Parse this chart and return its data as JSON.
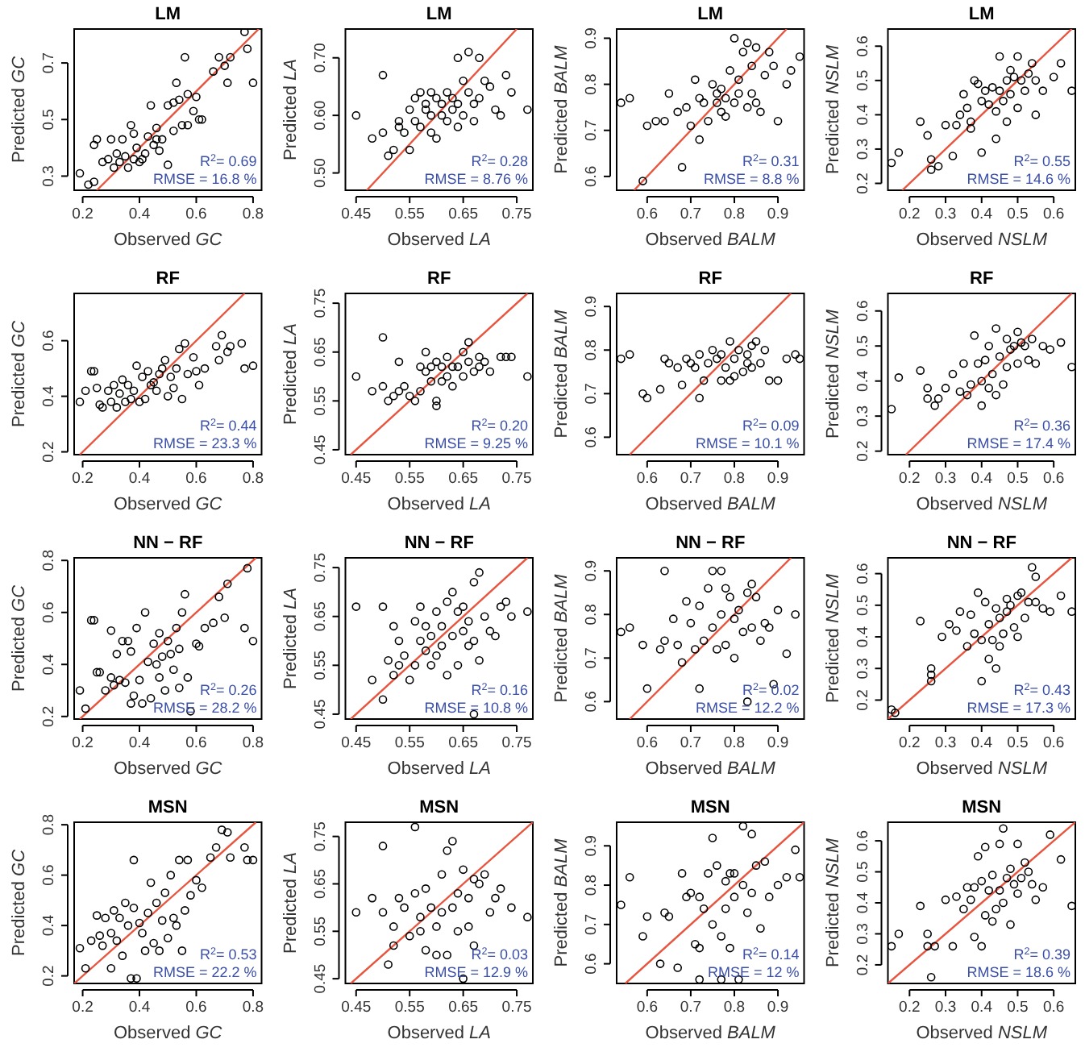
{
  "chart_data": [
    {
      "type": "scatter",
      "title": "LM",
      "xlabel": "Observed GC",
      "ylabel": "Predicted GC",
      "xlim": [
        0.17,
        0.83
      ],
      "ylim": [
        0.25,
        0.82
      ],
      "xticks": [
        0.2,
        0.4,
        0.6,
        0.8
      ],
      "yticks": [
        0.3,
        0.5,
        0.7
      ],
      "marker": "circle",
      "annotations": [
        "R$^{2}$= 0.69",
        "RMSE = 16.8 %"
      ],
      "series": [
        {
          "type": "scatter",
          "color": "#000000",
          "x": [
            0.19,
            0.22,
            0.24,
            0.24,
            0.25,
            0.27,
            0.29,
            0.3,
            0.31,
            0.32,
            0.33,
            0.34,
            0.35,
            0.36,
            0.37,
            0.38,
            0.39,
            0.4,
            0.42,
            0.43,
            0.44,
            0.45,
            0.46,
            0.47,
            0.48,
            0.5,
            0.5,
            0.52,
            0.53,
            0.54,
            0.55,
            0.56,
            0.57,
            0.59,
            0.6,
            0.61,
            0.62,
            0.66,
            0.68,
            0.7,
            0.71,
            0.72,
            0.77,
            0.78,
            0.8,
            0.41,
            0.38,
            0.46,
            0.52,
            0.57
          ],
          "values": [
            0.31,
            0.27,
            0.28,
            0.41,
            0.43,
            0.35,
            0.36,
            0.43,
            0.33,
            0.38,
            0.35,
            0.43,
            0.37,
            0.33,
            0.48,
            0.36,
            0.4,
            0.35,
            0.38,
            0.44,
            0.55,
            0.41,
            0.47,
            0.39,
            0.43,
            0.55,
            0.34,
            0.46,
            0.63,
            0.57,
            0.48,
            0.72,
            0.48,
            0.53,
            0.58,
            0.5,
            0.5,
            0.67,
            0.72,
            0.69,
            0.63,
            0.72,
            0.81,
            0.75,
            0.63,
            0.36,
            0.45,
            0.43,
            0.56,
            0.59
          ]
        },
        {
          "type": "line",
          "marker": "none",
          "color": "#e8553f",
          "x": [
            0.25,
            0.82
          ],
          "values": [
            0.25,
            0.82
          ]
        }
      ]
    },
    {
      "type": "scatter",
      "title": "LM",
      "xlabel": "Observed LA",
      "ylabel": "Predicted LA",
      "xlim": [
        0.43,
        0.78
      ],
      "ylim": [
        0.47,
        0.75
      ],
      "xticks": [
        0.45,
        0.55,
        0.65,
        0.75
      ],
      "yticks": [
        {
          "value": 0.5,
          "label": "0.50"
        },
        {
          "value": 0.6,
          "label": "0.60"
        },
        {
          "value": 0.7,
          "label": "0.70"
        }
      ],
      "marker": "circle",
      "annotations": [
        "R$^{2}$= 0.28",
        "RMSE = 8.76 %"
      ],
      "series": [
        {
          "type": "scatter",
          "color": "#000000",
          "x": [
            0.45,
            0.48,
            0.5,
            0.5,
            0.51,
            0.52,
            0.53,
            0.53,
            0.54,
            0.55,
            0.55,
            0.56,
            0.56,
            0.57,
            0.57,
            0.58,
            0.58,
            0.59,
            0.59,
            0.6,
            0.6,
            0.61,
            0.61,
            0.62,
            0.62,
            0.63,
            0.63,
            0.64,
            0.64,
            0.65,
            0.65,
            0.66,
            0.66,
            0.67,
            0.67,
            0.68,
            0.68,
            0.69,
            0.7,
            0.71,
            0.72,
            0.73,
            0.74,
            0.77,
            0.64,
            0.59
          ],
          "values": [
            0.6,
            0.56,
            0.67,
            0.57,
            0.53,
            0.54,
            0.59,
            0.58,
            0.57,
            0.54,
            0.61,
            0.63,
            0.59,
            0.58,
            0.64,
            0.61,
            0.62,
            0.57,
            0.6,
            0.56,
            0.63,
            0.6,
            0.62,
            0.64,
            0.59,
            0.61,
            0.63,
            0.58,
            0.62,
            0.66,
            0.6,
            0.64,
            0.71,
            0.62,
            0.59,
            0.63,
            0.7,
            0.66,
            0.65,
            0.61,
            0.6,
            0.67,
            0.64,
            0.61,
            0.7,
            0.64
          ]
        },
        {
          "type": "line",
          "marker": "none",
          "color": "#e8553f",
          "x": [
            0.47,
            0.75
          ],
          "values": [
            0.47,
            0.75
          ]
        }
      ]
    },
    {
      "type": "scatter",
      "title": "LM",
      "xlabel": "Observed BALM",
      "ylabel": "Predicted BALM",
      "xlim": [
        0.53,
        0.96
      ],
      "ylim": [
        0.57,
        0.92
      ],
      "xticks": [
        0.6,
        0.7,
        0.8,
        0.9
      ],
      "yticks": [
        0.6,
        0.7,
        0.8,
        0.9
      ],
      "marker": "circle",
      "annotations": [
        "R$^{2}$= 0.31",
        "RMSE = 8.8 %"
      ],
      "series": [
        {
          "type": "scatter",
          "color": "#000000",
          "x": [
            0.54,
            0.56,
            0.59,
            0.6,
            0.62,
            0.64,
            0.65,
            0.67,
            0.68,
            0.69,
            0.7,
            0.71,
            0.72,
            0.72,
            0.73,
            0.74,
            0.75,
            0.76,
            0.77,
            0.77,
            0.78,
            0.78,
            0.79,
            0.8,
            0.8,
            0.81,
            0.82,
            0.83,
            0.83,
            0.84,
            0.84,
            0.85,
            0.85,
            0.86,
            0.87,
            0.88,
            0.89,
            0.9,
            0.92,
            0.93,
            0.95,
            0.76,
            0.81
          ],
          "values": [
            0.76,
            0.77,
            0.59,
            0.71,
            0.72,
            0.72,
            0.78,
            0.74,
            0.62,
            0.75,
            0.71,
            0.81,
            0.68,
            0.77,
            0.76,
            0.72,
            0.8,
            0.76,
            0.74,
            0.79,
            0.73,
            0.77,
            0.83,
            0.76,
            0.9,
            0.78,
            0.87,
            0.89,
            0.75,
            0.78,
            0.84,
            0.88,
            0.76,
            0.74,
            0.82,
            0.87,
            0.84,
            0.72,
            0.8,
            0.83,
            0.86,
            0.78,
            0.81
          ]
        },
        {
          "type": "line",
          "marker": "none",
          "color": "#e8553f",
          "x": [
            0.57,
            0.92
          ],
          "values": [
            0.57,
            0.92
          ]
        }
      ]
    },
    {
      "type": "scatter",
      "title": "LM",
      "xlabel": "Observed NSLM",
      "ylabel": "Predicted NSLM",
      "xlim": [
        0.14,
        0.66
      ],
      "ylim": [
        0.18,
        0.65
      ],
      "xticks": [
        0.2,
        0.3,
        0.4,
        0.5,
        0.6
      ],
      "yticks": [
        0.2,
        0.3,
        0.4,
        0.5,
        0.6
      ],
      "marker": "circle",
      "annotations": [
        "R$^{2}$= 0.55",
        "RMSE = 14.6 %"
      ],
      "series": [
        {
          "type": "scatter",
          "color": "#000000",
          "x": [
            0.15,
            0.17,
            0.23,
            0.25,
            0.26,
            0.26,
            0.28,
            0.3,
            0.32,
            0.33,
            0.34,
            0.35,
            0.36,
            0.37,
            0.37,
            0.38,
            0.39,
            0.4,
            0.4,
            0.41,
            0.42,
            0.43,
            0.44,
            0.44,
            0.45,
            0.45,
            0.46,
            0.47,
            0.47,
            0.48,
            0.49,
            0.5,
            0.5,
            0.51,
            0.52,
            0.53,
            0.54,
            0.55,
            0.55,
            0.57,
            0.6,
            0.62,
            0.65,
            0.48
          ],
          "values": [
            0.26,
            0.29,
            0.38,
            0.34,
            0.24,
            0.27,
            0.25,
            0.37,
            0.28,
            0.37,
            0.4,
            0.46,
            0.42,
            0.38,
            0.36,
            0.5,
            0.49,
            0.44,
            0.29,
            0.47,
            0.43,
            0.48,
            0.41,
            0.33,
            0.57,
            0.47,
            0.44,
            0.5,
            0.38,
            0.46,
            0.51,
            0.42,
            0.57,
            0.5,
            0.47,
            0.52,
            0.55,
            0.4,
            0.5,
            0.47,
            0.51,
            0.55,
            0.47,
            0.53
          ]
        },
        {
          "type": "line",
          "marker": "none",
          "color": "#e8553f",
          "x": [
            0.18,
            0.65
          ],
          "values": [
            0.18,
            0.65
          ]
        }
      ]
    },
    {
      "type": "scatter",
      "title": "RF",
      "xlabel": "Observed GC",
      "ylabel": "Predicted GC",
      "xlim": [
        0.17,
        0.83
      ],
      "ylim": [
        0.19,
        0.77
      ],
      "xticks": [
        0.2,
        0.4,
        0.6,
        0.8
      ],
      "yticks": [
        0.2,
        0.4,
        0.6
      ],
      "marker": "circle",
      "annotations": [
        "R$^{2}$= 0.44",
        "RMSE = 23.3 %"
      ],
      "series": [
        {
          "type": "scatter",
          "color": "#000000",
          "x": [
            0.19,
            0.21,
            0.23,
            0.24,
            0.25,
            0.26,
            0.27,
            0.29,
            0.3,
            0.31,
            0.32,
            0.33,
            0.34,
            0.35,
            0.36,
            0.37,
            0.38,
            0.39,
            0.4,
            0.41,
            0.42,
            0.43,
            0.44,
            0.45,
            0.46,
            0.47,
            0.48,
            0.49,
            0.5,
            0.51,
            0.52,
            0.53,
            0.54,
            0.55,
            0.56,
            0.57,
            0.59,
            0.6,
            0.61,
            0.63,
            0.67,
            0.69,
            0.71,
            0.72,
            0.76,
            0.77,
            0.8,
            0.68
          ],
          "values": [
            0.38,
            0.42,
            0.49,
            0.49,
            0.43,
            0.37,
            0.36,
            0.42,
            0.38,
            0.44,
            0.36,
            0.41,
            0.46,
            0.38,
            0.44,
            0.39,
            0.42,
            0.51,
            0.38,
            0.47,
            0.39,
            0.49,
            0.44,
            0.45,
            0.42,
            0.48,
            0.5,
            0.53,
            0.4,
            0.47,
            0.43,
            0.5,
            0.57,
            0.39,
            0.59,
            0.48,
            0.54,
            0.49,
            0.44,
            0.5,
            0.58,
            0.62,
            0.56,
            0.58,
            0.59,
            0.5,
            0.51,
            0.53
          ]
        },
        {
          "type": "line",
          "marker": "none",
          "color": "#e8553f",
          "x": [
            0.19,
            0.77
          ],
          "values": [
            0.19,
            0.77
          ]
        }
      ]
    },
    {
      "type": "scatter",
      "title": "RF",
      "xlabel": "Observed LA",
      "ylabel": "Predicted LA",
      "xlim": [
        0.43,
        0.78
      ],
      "ylim": [
        0.44,
        0.77
      ],
      "xticks": [
        0.45,
        0.55,
        0.65,
        0.75
      ],
      "yticks": [
        0.45,
        0.55,
        0.65,
        0.75
      ],
      "marker": "circle",
      "annotations": [
        "R$^{2}$= 0.20",
        "RMSE = 9.25 %"
      ],
      "series": [
        {
          "type": "scatter",
          "color": "#000000",
          "x": [
            0.45,
            0.48,
            0.5,
            0.5,
            0.51,
            0.52,
            0.53,
            0.53,
            0.54,
            0.55,
            0.56,
            0.57,
            0.57,
            0.58,
            0.58,
            0.59,
            0.59,
            0.6,
            0.6,
            0.61,
            0.61,
            0.62,
            0.62,
            0.63,
            0.63,
            0.64,
            0.65,
            0.65,
            0.66,
            0.66,
            0.67,
            0.68,
            0.68,
            0.69,
            0.7,
            0.72,
            0.73,
            0.74,
            0.77,
            0.6
          ],
          "values": [
            0.6,
            0.57,
            0.68,
            0.58,
            0.55,
            0.56,
            0.63,
            0.57,
            0.58,
            0.56,
            0.55,
            0.62,
            0.57,
            0.65,
            0.61,
            0.59,
            0.62,
            0.55,
            0.63,
            0.59,
            0.62,
            0.6,
            0.64,
            0.62,
            0.58,
            0.62,
            0.65,
            0.6,
            0.67,
            0.63,
            0.61,
            0.64,
            0.62,
            0.63,
            0.61,
            0.64,
            0.64,
            0.64,
            0.6,
            0.54
          ]
        },
        {
          "type": "line",
          "marker": "none",
          "color": "#e8553f",
          "x": [
            0.44,
            0.77
          ],
          "values": [
            0.44,
            0.77
          ]
        }
      ]
    },
    {
      "type": "scatter",
      "title": "RF",
      "xlabel": "Observed BALM",
      "ylabel": "Predicted BALM",
      "xlim": [
        0.53,
        0.96
      ],
      "ylim": [
        0.56,
        0.93
      ],
      "xticks": [
        0.6,
        0.7,
        0.8,
        0.9
      ],
      "yticks": [
        0.6,
        0.7,
        0.8,
        0.9
      ],
      "marker": "circle",
      "annotations": [
        "R$^{2}$= 0.09",
        "RMSE = 10.1 %"
      ],
      "series": [
        {
          "type": "scatter",
          "color": "#000000",
          "x": [
            0.54,
            0.56,
            0.59,
            0.6,
            0.63,
            0.64,
            0.65,
            0.67,
            0.68,
            0.69,
            0.7,
            0.71,
            0.72,
            0.72,
            0.73,
            0.74,
            0.75,
            0.76,
            0.77,
            0.77,
            0.78,
            0.79,
            0.8,
            0.8,
            0.81,
            0.82,
            0.83,
            0.84,
            0.84,
            0.85,
            0.86,
            0.87,
            0.88,
            0.9,
            0.92,
            0.94,
            0.95,
            0.79,
            0.83
          ],
          "values": [
            0.78,
            0.79,
            0.7,
            0.69,
            0.71,
            0.78,
            0.77,
            0.76,
            0.72,
            0.78,
            0.77,
            0.76,
            0.69,
            0.79,
            0.73,
            0.77,
            0.8,
            0.78,
            0.73,
            0.79,
            0.76,
            0.82,
            0.74,
            0.78,
            0.8,
            0.75,
            0.79,
            0.81,
            0.76,
            0.82,
            0.77,
            0.8,
            0.73,
            0.73,
            0.78,
            0.79,
            0.78,
            0.73,
            0.77
          ]
        },
        {
          "type": "line",
          "marker": "none",
          "color": "#e8553f",
          "x": [
            0.56,
            0.93
          ],
          "values": [
            0.56,
            0.93
          ]
        }
      ]
    },
    {
      "type": "scatter",
      "title": "RF",
      "xlabel": "Observed NSLM",
      "ylabel": "Predicted NSLM",
      "xlim": [
        0.14,
        0.66
      ],
      "ylim": [
        0.19,
        0.65
      ],
      "xticks": [
        0.2,
        0.3,
        0.4,
        0.5,
        0.6
      ],
      "yticks": [
        0.2,
        0.3,
        0.4,
        0.5,
        0.6
      ],
      "marker": "circle",
      "annotations": [
        "R$^{2}$= 0.36",
        "RMSE = 17.4 %"
      ],
      "series": [
        {
          "type": "scatter",
          "color": "#000000",
          "x": [
            0.15,
            0.17,
            0.23,
            0.25,
            0.25,
            0.27,
            0.28,
            0.3,
            0.32,
            0.34,
            0.35,
            0.36,
            0.37,
            0.38,
            0.39,
            0.4,
            0.4,
            0.41,
            0.42,
            0.42,
            0.43,
            0.44,
            0.44,
            0.45,
            0.46,
            0.47,
            0.47,
            0.48,
            0.49,
            0.5,
            0.5,
            0.51,
            0.52,
            0.53,
            0.54,
            0.55,
            0.57,
            0.59,
            0.62,
            0.65
          ],
          "values": [
            0.32,
            0.41,
            0.43,
            0.35,
            0.38,
            0.33,
            0.35,
            0.38,
            0.42,
            0.37,
            0.45,
            0.36,
            0.39,
            0.53,
            0.45,
            0.33,
            0.4,
            0.46,
            0.38,
            0.5,
            0.42,
            0.55,
            0.36,
            0.47,
            0.39,
            0.44,
            0.52,
            0.49,
            0.5,
            0.54,
            0.45,
            0.51,
            0.5,
            0.46,
            0.52,
            0.45,
            0.5,
            0.49,
            0.51,
            0.44
          ]
        },
        {
          "type": "line",
          "marker": "none",
          "color": "#e8553f",
          "x": [
            0.19,
            0.65
          ],
          "values": [
            0.19,
            0.65
          ]
        }
      ]
    },
    {
      "type": "scatter",
      "title": "NN − RF",
      "xlabel": "Observed GC",
      "ylabel": "Predicted GC",
      "xlim": [
        0.17,
        0.83
      ],
      "ylim": [
        0.19,
        0.81
      ],
      "xticks": [
        0.2,
        0.4,
        0.6,
        0.8
      ],
      "yticks": [
        0.2,
        0.4,
        0.6,
        0.8
      ],
      "marker": "circle",
      "annotations": [
        "R$^{2}$= 0.26",
        "RMSE = 28.2 %"
      ],
      "series": [
        {
          "type": "scatter",
          "color": "#000000",
          "x": [
            0.19,
            0.21,
            0.23,
            0.24,
            0.25,
            0.26,
            0.28,
            0.3,
            0.3,
            0.31,
            0.32,
            0.33,
            0.34,
            0.35,
            0.36,
            0.37,
            0.37,
            0.38,
            0.39,
            0.4,
            0.41,
            0.42,
            0.43,
            0.44,
            0.45,
            0.46,
            0.47,
            0.48,
            0.49,
            0.5,
            0.51,
            0.52,
            0.53,
            0.54,
            0.55,
            0.56,
            0.57,
            0.58,
            0.6,
            0.61,
            0.63,
            0.66,
            0.68,
            0.7,
            0.71,
            0.77,
            0.78,
            0.8,
            0.47,
            0.54
          ],
          "values": [
            0.3,
            0.23,
            0.57,
            0.57,
            0.37,
            0.37,
            0.3,
            0.35,
            0.53,
            0.32,
            0.44,
            0.34,
            0.49,
            0.33,
            0.49,
            0.25,
            0.45,
            0.28,
            0.54,
            0.34,
            0.25,
            0.6,
            0.41,
            0.27,
            0.48,
            0.4,
            0.52,
            0.43,
            0.3,
            0.49,
            0.44,
            0.38,
            0.54,
            0.46,
            0.6,
            0.67,
            0.35,
            0.22,
            0.48,
            0.47,
            0.54,
            0.56,
            0.66,
            0.58,
            0.71,
            0.54,
            0.77,
            0.49,
            0.35,
            0.31
          ]
        },
        {
          "type": "line",
          "marker": "none",
          "color": "#e8553f",
          "x": [
            0.19,
            0.81
          ],
          "values": [
            0.19,
            0.81
          ]
        }
      ]
    },
    {
      "type": "scatter",
      "title": "NN − RF",
      "xlabel": "Observed LA",
      "ylabel": "Predicted LA",
      "xlim": [
        0.43,
        0.78
      ],
      "ylim": [
        0.44,
        0.77
      ],
      "xticks": [
        0.45,
        0.55,
        0.65,
        0.75
      ],
      "yticks": [
        0.45,
        0.55,
        0.65,
        0.75
      ],
      "marker": "circle",
      "annotations": [
        "R$^{2}$= 0.16",
        "RMSE = 10.8 %"
      ],
      "series": [
        {
          "type": "scatter",
          "color": "#000000",
          "x": [
            0.45,
            0.48,
            0.5,
            0.5,
            0.51,
            0.52,
            0.52,
            0.53,
            0.53,
            0.54,
            0.55,
            0.56,
            0.56,
            0.57,
            0.57,
            0.58,
            0.58,
            0.59,
            0.59,
            0.6,
            0.6,
            0.61,
            0.61,
            0.62,
            0.62,
            0.63,
            0.63,
            0.64,
            0.64,
            0.65,
            0.65,
            0.66,
            0.66,
            0.67,
            0.67,
            0.68,
            0.68,
            0.69,
            0.7,
            0.71,
            0.72,
            0.73,
            0.74,
            0.77,
            0.67
          ],
          "values": [
            0.67,
            0.52,
            0.48,
            0.67,
            0.56,
            0.53,
            0.63,
            0.55,
            0.6,
            0.57,
            0.52,
            0.64,
            0.55,
            0.6,
            0.67,
            0.63,
            0.58,
            0.55,
            0.61,
            0.57,
            0.66,
            0.59,
            0.63,
            0.53,
            0.68,
            0.61,
            0.7,
            0.55,
            0.66,
            0.62,
            0.67,
            0.59,
            0.64,
            0.6,
            0.72,
            0.56,
            0.74,
            0.65,
            0.62,
            0.61,
            0.67,
            0.68,
            0.65,
            0.66,
            0.45
          ]
        },
        {
          "type": "line",
          "marker": "none",
          "color": "#e8553f",
          "x": [
            0.44,
            0.77
          ],
          "values": [
            0.44,
            0.77
          ]
        }
      ]
    },
    {
      "type": "scatter",
      "title": "NN − RF",
      "xlabel": "Observed BALM",
      "ylabel": "Predicted BALM",
      "xlim": [
        0.53,
        0.96
      ],
      "ylim": [
        0.56,
        0.93
      ],
      "xticks": [
        0.6,
        0.7,
        0.8,
        0.9
      ],
      "yticks": [
        0.6,
        0.7,
        0.8,
        0.9
      ],
      "marker": "circle",
      "annotations": [
        "R$^{2}$= 0.02",
        "RMSE = 12.2 %"
      ],
      "series": [
        {
          "type": "scatter",
          "color": "#000000",
          "x": [
            0.54,
            0.56,
            0.59,
            0.6,
            0.63,
            0.64,
            0.64,
            0.66,
            0.67,
            0.68,
            0.69,
            0.7,
            0.71,
            0.72,
            0.72,
            0.73,
            0.74,
            0.75,
            0.75,
            0.76,
            0.77,
            0.77,
            0.78,
            0.79,
            0.8,
            0.8,
            0.81,
            0.82,
            0.83,
            0.84,
            0.84,
            0.85,
            0.86,
            0.87,
            0.88,
            0.89,
            0.9,
            0.92,
            0.94,
            0.83,
            0.78
          ],
          "values": [
            0.76,
            0.77,
            0.73,
            0.63,
            0.72,
            0.74,
            0.9,
            0.79,
            0.73,
            0.69,
            0.83,
            0.78,
            0.72,
            0.63,
            0.82,
            0.74,
            0.86,
            0.77,
            0.9,
            0.72,
            0.9,
            0.8,
            0.73,
            0.84,
            0.7,
            0.79,
            0.81,
            0.76,
            0.85,
            0.77,
            0.87,
            0.84,
            0.74,
            0.78,
            0.77,
            0.64,
            0.81,
            0.71,
            0.8,
            0.6,
            0.86
          ]
        },
        {
          "type": "line",
          "marker": "none",
          "color": "#e8553f",
          "x": [
            0.56,
            0.93
          ],
          "values": [
            0.56,
            0.93
          ]
        }
      ]
    },
    {
      "type": "scatter",
      "title": "NN − RF",
      "xlabel": "Observed NSLM",
      "ylabel": "Predicted NSLM",
      "xlim": [
        0.14,
        0.66
      ],
      "ylim": [
        0.14,
        0.65
      ],
      "xticks": [
        0.2,
        0.3,
        0.4,
        0.5,
        0.6
      ],
      "yticks": [
        0.2,
        0.3,
        0.4,
        0.5,
        0.6
      ],
      "marker": "circle",
      "annotations": [
        "R$^{2}$= 0.43",
        "RMSE = 17.3 %"
      ],
      "series": [
        {
          "type": "scatter",
          "color": "#000000",
          "x": [
            0.15,
            0.16,
            0.23,
            0.26,
            0.26,
            0.26,
            0.29,
            0.31,
            0.33,
            0.34,
            0.36,
            0.37,
            0.38,
            0.39,
            0.4,
            0.4,
            0.41,
            0.42,
            0.42,
            0.43,
            0.44,
            0.44,
            0.45,
            0.45,
            0.46,
            0.47,
            0.47,
            0.48,
            0.49,
            0.5,
            0.5,
            0.51,
            0.52,
            0.53,
            0.54,
            0.55,
            0.55,
            0.57,
            0.59,
            0.62,
            0.65
          ],
          "values": [
            0.17,
            0.16,
            0.45,
            0.26,
            0.28,
            0.3,
            0.4,
            0.44,
            0.42,
            0.48,
            0.37,
            0.47,
            0.41,
            0.54,
            0.39,
            0.26,
            0.51,
            0.33,
            0.44,
            0.39,
            0.49,
            0.3,
            0.37,
            0.46,
            0.41,
            0.52,
            0.48,
            0.5,
            0.43,
            0.53,
            0.4,
            0.54,
            0.46,
            0.51,
            0.62,
            0.59,
            0.51,
            0.49,
            0.48,
            0.53,
            0.48
          ]
        },
        {
          "type": "line",
          "marker": "none",
          "color": "#e8553f",
          "x": [
            0.14,
            0.65
          ],
          "values": [
            0.14,
            0.65
          ]
        }
      ]
    },
    {
      "type": "scatter",
      "title": "MSN",
      "xlabel": "Observed GC",
      "ylabel": "Predicted GC",
      "xlim": [
        0.17,
        0.83
      ],
      "ylim": [
        0.17,
        0.81
      ],
      "xticks": [
        0.2,
        0.4,
        0.6,
        0.8
      ],
      "yticks": [
        0.2,
        0.4,
        0.6,
        0.8
      ],
      "marker": "circle",
      "annotations": [
        "R$^{2}$= 0.53",
        "RMSE = 22.2 %"
      ],
      "series": [
        {
          "type": "scatter",
          "color": "#000000",
          "x": [
            0.19,
            0.21,
            0.23,
            0.25,
            0.26,
            0.27,
            0.28,
            0.3,
            0.3,
            0.31,
            0.32,
            0.33,
            0.34,
            0.35,
            0.36,
            0.37,
            0.38,
            0.38,
            0.39,
            0.4,
            0.41,
            0.42,
            0.43,
            0.44,
            0.45,
            0.46,
            0.47,
            0.48,
            0.49,
            0.5,
            0.51,
            0.52,
            0.53,
            0.54,
            0.55,
            0.56,
            0.57,
            0.58,
            0.6,
            0.62,
            0.65,
            0.67,
            0.69,
            0.71,
            0.72,
            0.77,
            0.78,
            0.8
          ],
          "values": [
            0.31,
            0.23,
            0.34,
            0.44,
            0.36,
            0.32,
            0.43,
            0.37,
            0.23,
            0.46,
            0.34,
            0.43,
            0.28,
            0.49,
            0.4,
            0.19,
            0.47,
            0.66,
            0.19,
            0.41,
            0.37,
            0.3,
            0.45,
            0.57,
            0.33,
            0.49,
            0.3,
            0.42,
            0.53,
            0.35,
            0.6,
            0.43,
            0.4,
            0.66,
            0.3,
            0.46,
            0.66,
            0.52,
            0.58,
            0.55,
            0.67,
            0.71,
            0.78,
            0.77,
            0.67,
            0.71,
            0.66,
            0.66
          ]
        },
        {
          "type": "line",
          "marker": "none",
          "color": "#e8553f",
          "x": [
            0.17,
            0.81
          ],
          "values": [
            0.17,
            0.81
          ]
        }
      ]
    },
    {
      "type": "scatter",
      "title": "MSN",
      "xlabel": "Observed LA",
      "ylabel": "Predicted LA",
      "xlim": [
        0.43,
        0.78
      ],
      "ylim": [
        0.44,
        0.78
      ],
      "xticks": [
        0.45,
        0.55,
        0.65,
        0.75
      ],
      "yticks": [
        0.45,
        0.55,
        0.65,
        0.75
      ],
      "marker": "circle",
      "annotations": [
        "R$^{2}$= 0.03",
        "RMSE = 12.9 %"
      ],
      "series": [
        {
          "type": "scatter",
          "color": "#000000",
          "x": [
            0.45,
            0.48,
            0.5,
            0.5,
            0.51,
            0.52,
            0.52,
            0.53,
            0.54,
            0.55,
            0.56,
            0.56,
            0.57,
            0.57,
            0.58,
            0.58,
            0.59,
            0.6,
            0.6,
            0.61,
            0.61,
            0.62,
            0.62,
            0.63,
            0.63,
            0.64,
            0.64,
            0.65,
            0.65,
            0.66,
            0.66,
            0.67,
            0.67,
            0.68,
            0.69,
            0.7,
            0.71,
            0.72,
            0.74,
            0.77
          ],
          "values": [
            0.59,
            0.62,
            0.73,
            0.59,
            0.48,
            0.56,
            0.52,
            0.62,
            0.6,
            0.54,
            0.77,
            0.63,
            0.58,
            0.55,
            0.64,
            0.51,
            0.6,
            0.5,
            0.56,
            0.67,
            0.59,
            0.5,
            0.72,
            0.74,
            0.6,
            0.63,
            0.55,
            0.68,
            0.45,
            0.56,
            0.62,
            0.52,
            0.66,
            0.65,
            0.67,
            0.59,
            0.62,
            0.64,
            0.6,
            0.58
          ]
        },
        {
          "type": "line",
          "marker": "none",
          "color": "#e8553f",
          "x": [
            0.44,
            0.78
          ],
          "values": [
            0.44,
            0.78
          ]
        }
      ]
    },
    {
      "type": "scatter",
      "title": "MSN",
      "xlabel": "Observed BALM",
      "ylabel": "Predicted BALM",
      "xlim": [
        0.53,
        0.96
      ],
      "ylim": [
        0.55,
        0.96
      ],
      "xticks": [
        0.6,
        0.7,
        0.8,
        0.9
      ],
      "yticks": [
        0.6,
        0.7,
        0.8,
        0.9
      ],
      "marker": "circle",
      "annotations": [
        "R$^{2}$= 0.14",
        "RMSE = 12 %"
      ],
      "series": [
        {
          "type": "scatter",
          "color": "#000000",
          "x": [
            0.54,
            0.56,
            0.59,
            0.6,
            0.63,
            0.64,
            0.65,
            0.67,
            0.68,
            0.69,
            0.7,
            0.71,
            0.72,
            0.72,
            0.73,
            0.74,
            0.75,
            0.75,
            0.76,
            0.77,
            0.77,
            0.78,
            0.78,
            0.79,
            0.79,
            0.8,
            0.8,
            0.81,
            0.82,
            0.82,
            0.83,
            0.84,
            0.84,
            0.85,
            0.86,
            0.87,
            0.88,
            0.9,
            0.92,
            0.94,
            0.95,
            0.72
          ],
          "values": [
            0.75,
            0.82,
            0.67,
            0.72,
            0.6,
            0.73,
            0.72,
            0.59,
            0.83,
            0.77,
            0.78,
            0.65,
            0.77,
            0.56,
            0.74,
            0.83,
            0.92,
            0.7,
            0.85,
            0.56,
            0.67,
            0.81,
            0.74,
            0.83,
            0.64,
            0.77,
            0.83,
            0.56,
            0.95,
            0.8,
            0.73,
            0.93,
            0.78,
            0.85,
            0.69,
            0.86,
            0.77,
            0.8,
            0.82,
            0.89,
            0.82,
            0.64
          ]
        },
        {
          "type": "line",
          "marker": "none",
          "color": "#e8553f",
          "x": [
            0.55,
            0.96
          ],
          "values": [
            0.55,
            0.96
          ]
        }
      ]
    },
    {
      "type": "scatter",
      "title": "MSN",
      "xlabel": "Observed NSLM",
      "ylabel": "Predicted NSLM",
      "xlim": [
        0.14,
        0.66
      ],
      "ylim": [
        0.14,
        0.66
      ],
      "xticks": [
        0.2,
        0.3,
        0.4,
        0.5,
        0.6
      ],
      "yticks": [
        0.2,
        0.3,
        0.4,
        0.5,
        0.6
      ],
      "marker": "circle",
      "annotations": [
        "R$^{2}$= 0.39",
        "RMSE = 18.6 %"
      ],
      "series": [
        {
          "type": "scatter",
          "color": "#000000",
          "x": [
            0.15,
            0.17,
            0.23,
            0.25,
            0.25,
            0.26,
            0.27,
            0.3,
            0.32,
            0.33,
            0.35,
            0.36,
            0.37,
            0.38,
            0.38,
            0.39,
            0.4,
            0.4,
            0.41,
            0.41,
            0.42,
            0.43,
            0.43,
            0.44,
            0.45,
            0.45,
            0.46,
            0.46,
            0.47,
            0.48,
            0.48,
            0.49,
            0.5,
            0.5,
            0.51,
            0.52,
            0.53,
            0.54,
            0.55,
            0.57,
            0.59,
            0.62,
            0.65
          ],
          "values": [
            0.26,
            0.3,
            0.39,
            0.26,
            0.3,
            0.16,
            0.26,
            0.41,
            0.26,
            0.42,
            0.38,
            0.45,
            0.41,
            0.29,
            0.45,
            0.55,
            0.26,
            0.47,
            0.58,
            0.36,
            0.44,
            0.34,
            0.49,
            0.38,
            0.59,
            0.44,
            0.64,
            0.4,
            0.48,
            0.33,
            0.51,
            0.46,
            0.59,
            0.43,
            0.48,
            0.53,
            0.5,
            0.46,
            0.41,
            0.45,
            0.62,
            0.54,
            0.39
          ]
        },
        {
          "type": "line",
          "marker": "none",
          "color": "#e8553f",
          "x": [
            0.14,
            0.66
          ],
          "values": [
            0.14,
            0.66
          ]
        }
      ]
    }
  ]
}
